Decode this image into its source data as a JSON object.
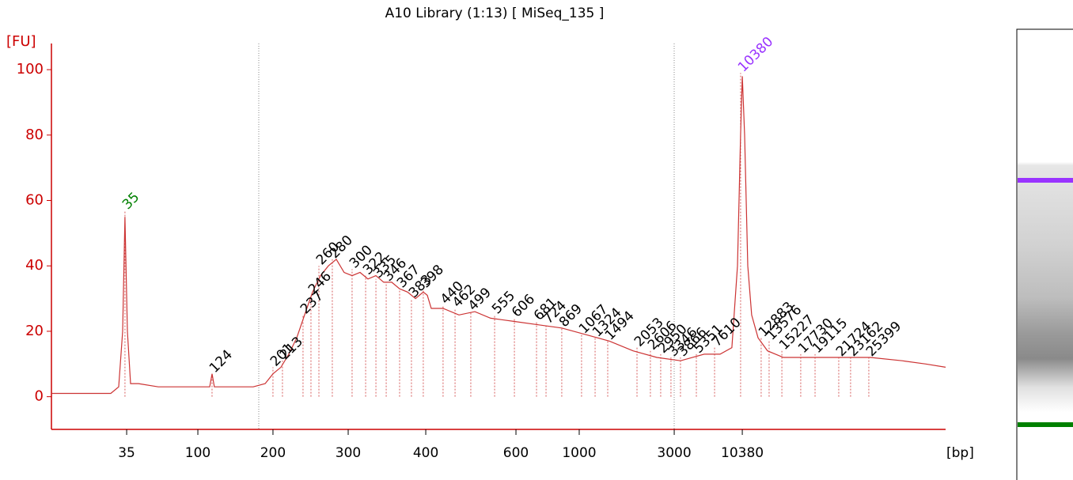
{
  "chart_data": {
    "type": "line",
    "title": "A10 Library (1:13)  [ MiSeq_135 ]",
    "y_label": "[FU]",
    "x_label": "[bp]",
    "color": "#cc3333",
    "axis_color": "#cc0000",
    "xlim": [
      40,
      120
    ],
    "ylim": [
      -10,
      108
    ],
    "yticks": [
      0,
      20,
      40,
      60,
      80,
      100
    ],
    "xticks": [
      {
        "value": 46.73,
        "label": "35"
      },
      {
        "value": 53.1,
        "label": "100"
      },
      {
        "value": 59.82,
        "label": "200"
      },
      {
        "value": 66.55,
        "label": "300"
      },
      {
        "value": 73.49,
        "label": "400"
      },
      {
        "value": 81.56,
        "label": "600"
      },
      {
        "value": 87.22,
        "label": "1000"
      },
      {
        "value": 95.72,
        "label": "3000"
      },
      {
        "value": 101.81,
        "label": "10380"
      }
    ],
    "x": [
      40.0,
      42.48,
      45.31,
      46.02,
      46.37,
      46.58,
      46.8,
      47.08,
      47.79,
      49.56,
      52.39,
      54.16,
      54.37,
      54.58,
      56.64,
      58.05,
      59.12,
      59.82,
      60.53,
      61.24,
      61.95,
      62.65,
      63.36,
      64.07,
      64.78,
      65.49,
      66.19,
      66.9,
      67.61,
      68.32,
      69.03,
      69.73,
      70.44,
      71.15,
      71.86,
      72.57,
      73.27,
      73.63,
      73.98,
      75.04,
      76.46,
      77.88,
      79.29,
      81.42,
      83.54,
      85.66,
      87.79,
      89.91,
      92.04,
      94.16,
      96.28,
      98.41,
      99.82,
      100.88,
      101.38,
      101.66,
      101.81,
      102.02,
      102.3,
      102.65,
      103.22,
      104.07,
      105.49,
      107.61,
      110.44,
      113.27,
      116.11,
      118.23,
      120.0
    ],
    "values": [
      1,
      1,
      1,
      3,
      20,
      55,
      20,
      4,
      4,
      3,
      3,
      3,
      7,
      3,
      3,
      3,
      4,
      7,
      9,
      13,
      18,
      25,
      32,
      37,
      40,
      42,
      38,
      37,
      38,
      36,
      37,
      35,
      35,
      33,
      32,
      30,
      32,
      31,
      27,
      27,
      25,
      26,
      24,
      23,
      22,
      21,
      19,
      17,
      14,
      12,
      11,
      13,
      13,
      15,
      40,
      80,
      98,
      80,
      40,
      25,
      18,
      14,
      12,
      12,
      12,
      12,
      11,
      10,
      9
    ],
    "annotations": [
      {
        "text": "35",
        "x": 46.58,
        "y": 57,
        "color": "#008000"
      },
      {
        "text": "124",
        "x": 54.37,
        "y": 7,
        "color": "#000000"
      },
      {
        "text": "201",
        "x": 59.82,
        "y": 9,
        "color": "#000000"
      },
      {
        "text": "213",
        "x": 60.67,
        "y": 11,
        "color": "#000000"
      },
      {
        "text": "237",
        "x": 62.51,
        "y": 25,
        "color": "#000000"
      },
      {
        "text": "246",
        "x": 63.22,
        "y": 31,
        "color": "#000000"
      },
      {
        "text": "260",
        "x": 63.93,
        "y": 40,
        "color": "#000000"
      },
      {
        "text": "280",
        "x": 65.13,
        "y": 42,
        "color": "#000000"
      },
      {
        "text": "300",
        "x": 66.9,
        "y": 39,
        "color": "#000000"
      },
      {
        "text": "322",
        "x": 68.11,
        "y": 37,
        "color": "#000000"
      },
      {
        "text": "335",
        "x": 69.03,
        "y": 36,
        "color": "#000000"
      },
      {
        "text": "346",
        "x": 69.95,
        "y": 35,
        "color": "#000000"
      },
      {
        "text": "367",
        "x": 71.15,
        "y": 33,
        "color": "#000000"
      },
      {
        "text": "383",
        "x": 72.21,
        "y": 30,
        "color": "#000000"
      },
      {
        "text": "398",
        "x": 73.27,
        "y": 33,
        "color": "#000000"
      },
      {
        "text": "440",
        "x": 75.04,
        "y": 28,
        "color": "#000000"
      },
      {
        "text": "462",
        "x": 76.11,
        "y": 27,
        "color": "#000000"
      },
      {
        "text": "499",
        "x": 77.52,
        "y": 26,
        "color": "#000000"
      },
      {
        "text": "555",
        "x": 79.65,
        "y": 25,
        "color": "#000000"
      },
      {
        "text": "606",
        "x": 81.42,
        "y": 24,
        "color": "#000000"
      },
      {
        "text": "681",
        "x": 83.4,
        "y": 23,
        "color": "#000000"
      },
      {
        "text": "724",
        "x": 84.25,
        "y": 22,
        "color": "#000000"
      },
      {
        "text": "869",
        "x": 85.66,
        "y": 21,
        "color": "#000000"
      },
      {
        "text": "1067",
        "x": 87.43,
        "y": 19,
        "color": "#000000"
      },
      {
        "text": "1324",
        "x": 88.64,
        "y": 18,
        "color": "#000000"
      },
      {
        "text": "1494",
        "x": 89.77,
        "y": 17,
        "color": "#000000"
      },
      {
        "text": "2053",
        "x": 92.39,
        "y": 15,
        "color": "#000000"
      },
      {
        "text": "2606",
        "x": 93.59,
        "y": 14,
        "color": "#000000"
      },
      {
        "text": "2950",
        "x": 94.51,
        "y": 13,
        "color": "#000000"
      },
      {
        "text": "3346",
        "x": 95.43,
        "y": 12,
        "color": "#000000"
      },
      {
        "text": "3866",
        "x": 96.28,
        "y": 12,
        "color": "#000000"
      },
      {
        "text": "5351",
        "x": 97.7,
        "y": 13,
        "color": "#000000"
      },
      {
        "text": "7610",
        "x": 99.33,
        "y": 15,
        "color": "#000000"
      },
      {
        "text": "10380",
        "x": 101.66,
        "y": 99,
        "color": "#9933ff"
      },
      {
        "text": "12883",
        "x": 103.5,
        "y": 18,
        "color": "#000000"
      },
      {
        "text": "13576",
        "x": 104.21,
        "y": 17,
        "color": "#000000"
      },
      {
        "text": "15227",
        "x": 105.35,
        "y": 14,
        "color": "#000000"
      },
      {
        "text": "17730",
        "x": 107.04,
        "y": 13,
        "color": "#000000"
      },
      {
        "text": "19115",
        "x": 108.32,
        "y": 13,
        "color": "#000000"
      },
      {
        "text": "21724",
        "x": 110.44,
        "y": 12,
        "color": "#000000"
      },
      {
        "text": "23162",
        "x": 111.5,
        "y": 12,
        "color": "#000000"
      },
      {
        "text": "25399",
        "x": 113.13,
        "y": 12,
        "color": "#000000"
      }
    ]
  }
}
